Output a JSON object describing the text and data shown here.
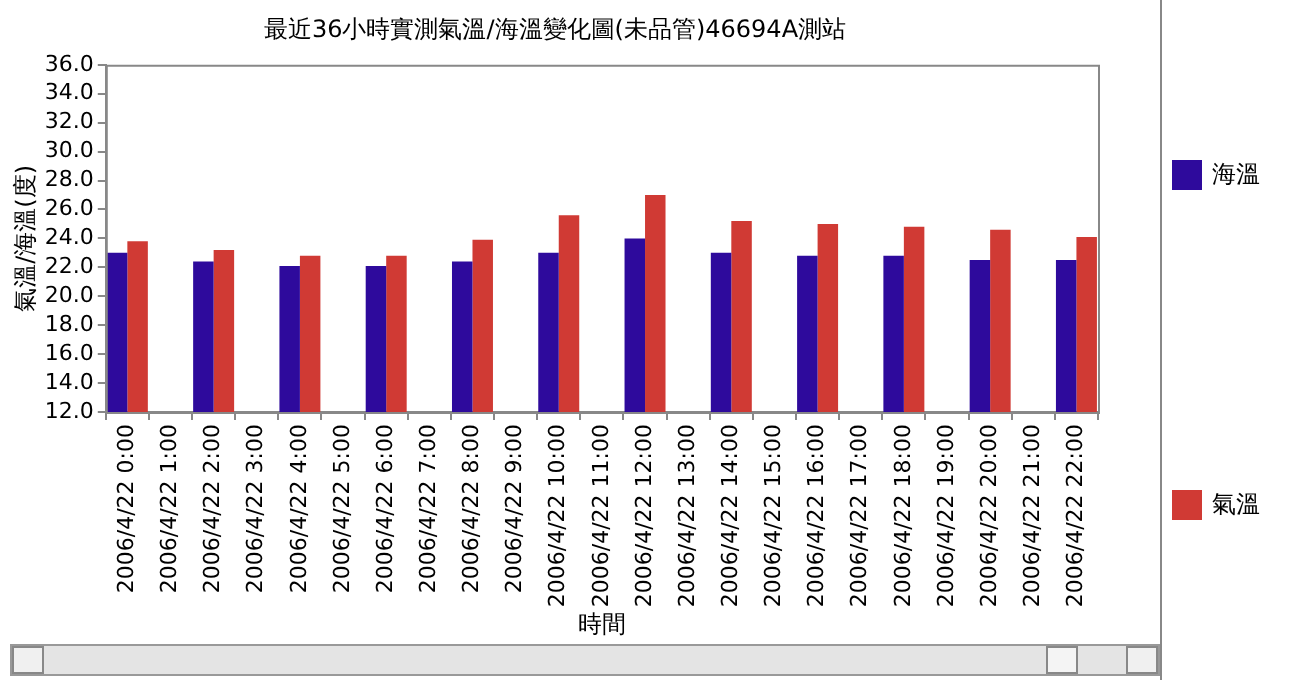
{
  "chart_data": {
    "type": "bar",
    "title": "最近36小時實測氣溫/海溫變化圖(未品管)46694A測站",
    "xlabel": "時間",
    "ylabel": "氣溫/海溫(度)",
    "categories": [
      "2006/4/22 0:00",
      "2006/4/22 1:00",
      "2006/4/22 2:00",
      "2006/4/22 3:00",
      "2006/4/22 4:00",
      "2006/4/22 5:00",
      "2006/4/22 6:00",
      "2006/4/22 7:00",
      "2006/4/22 8:00",
      "2006/4/22 9:00",
      "2006/4/22 10:00",
      "2006/4/22 11:00",
      "2006/4/22 12:00",
      "2006/4/22 13:00",
      "2006/4/22 14:00",
      "2006/4/22 15:00",
      "2006/4/22 16:00",
      "2006/4/22 17:00",
      "2006/4/22 18:00",
      "2006/4/22 19:00",
      "2006/4/22 20:00",
      "2006/4/22 21:00",
      "2006/4/22 22:00"
    ],
    "series": [
      {
        "name": "海溫",
        "color": "#2e0a9c",
        "values": [
          23.0,
          null,
          22.4,
          null,
          22.1,
          null,
          22.1,
          null,
          22.4,
          null,
          23.0,
          null,
          24.0,
          null,
          23.0,
          null,
          22.8,
          null,
          22.8,
          null,
          22.5,
          null,
          22.5
        ]
      },
      {
        "name": "氣溫",
        "color": "#d03a34",
        "values": [
          23.8,
          null,
          23.2,
          null,
          22.8,
          null,
          22.8,
          null,
          23.9,
          null,
          25.6,
          null,
          27.0,
          null,
          25.2,
          null,
          25.0,
          null,
          24.8,
          null,
          24.6,
          null,
          24.1
        ]
      }
    ],
    "ylim": [
      12,
      36
    ],
    "yticks": [
      {
        "value": 12,
        "label": "12.0"
      },
      {
        "value": 14,
        "label": "14.0"
      },
      {
        "value": 16,
        "label": "16.0"
      },
      {
        "value": 18,
        "label": "18.0"
      },
      {
        "value": 20,
        "label": "20.0"
      },
      {
        "value": 22,
        "label": "22.0"
      },
      {
        "value": 24,
        "label": "24.0"
      },
      {
        "value": 26,
        "label": "26.0"
      },
      {
        "value": 28,
        "label": "28.0"
      },
      {
        "value": 30,
        "label": "30.0"
      },
      {
        "value": 32,
        "label": "32.0"
      },
      {
        "value": 34,
        "label": "34.0"
      },
      {
        "value": 36,
        "label": "36.0"
      }
    ],
    "grid": false,
    "legend": "right"
  }
}
